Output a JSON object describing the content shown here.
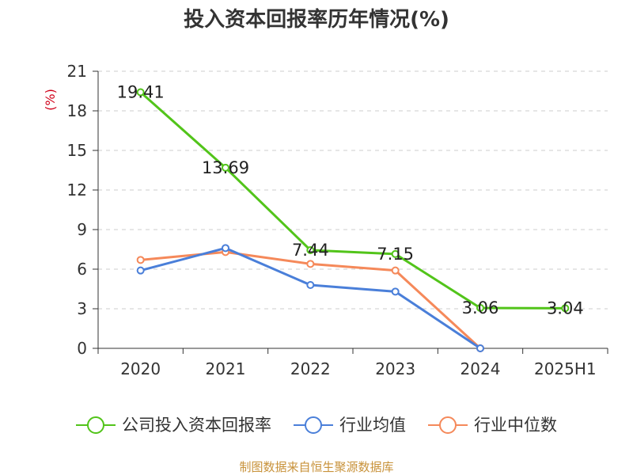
{
  "chart_data": {
    "type": "line",
    "title": "投入资本回报率历年情况(%)",
    "ylabel": "(%)",
    "xlabel": "",
    "categories": [
      "2020",
      "2021",
      "2022",
      "2023",
      "2024",
      "2025H1"
    ],
    "ylim": [
      0,
      21
    ],
    "yticks": [
      0,
      3,
      6,
      9,
      12,
      15,
      18,
      21
    ],
    "grid": true,
    "legend_position": "bottom",
    "series": [
      {
        "name": "公司投入资本回报率",
        "color": "#52c41a",
        "values": [
          19.41,
          13.69,
          7.44,
          7.15,
          3.06,
          3.04
        ],
        "labels": [
          "19.41",
          "13.69",
          "7.44",
          "7.15",
          "3.06",
          "3.04"
        ]
      },
      {
        "name": "行业均值",
        "color": "#4a7fd9",
        "values": [
          5.9,
          7.6,
          4.8,
          4.3,
          0.0,
          null
        ]
      },
      {
        "name": "行业中位数",
        "color": "#f5895a",
        "values": [
          6.7,
          7.3,
          6.4,
          5.9,
          0.0,
          null
        ]
      }
    ]
  },
  "footer": {
    "source": "制图数据来自恒生聚源数据库"
  }
}
